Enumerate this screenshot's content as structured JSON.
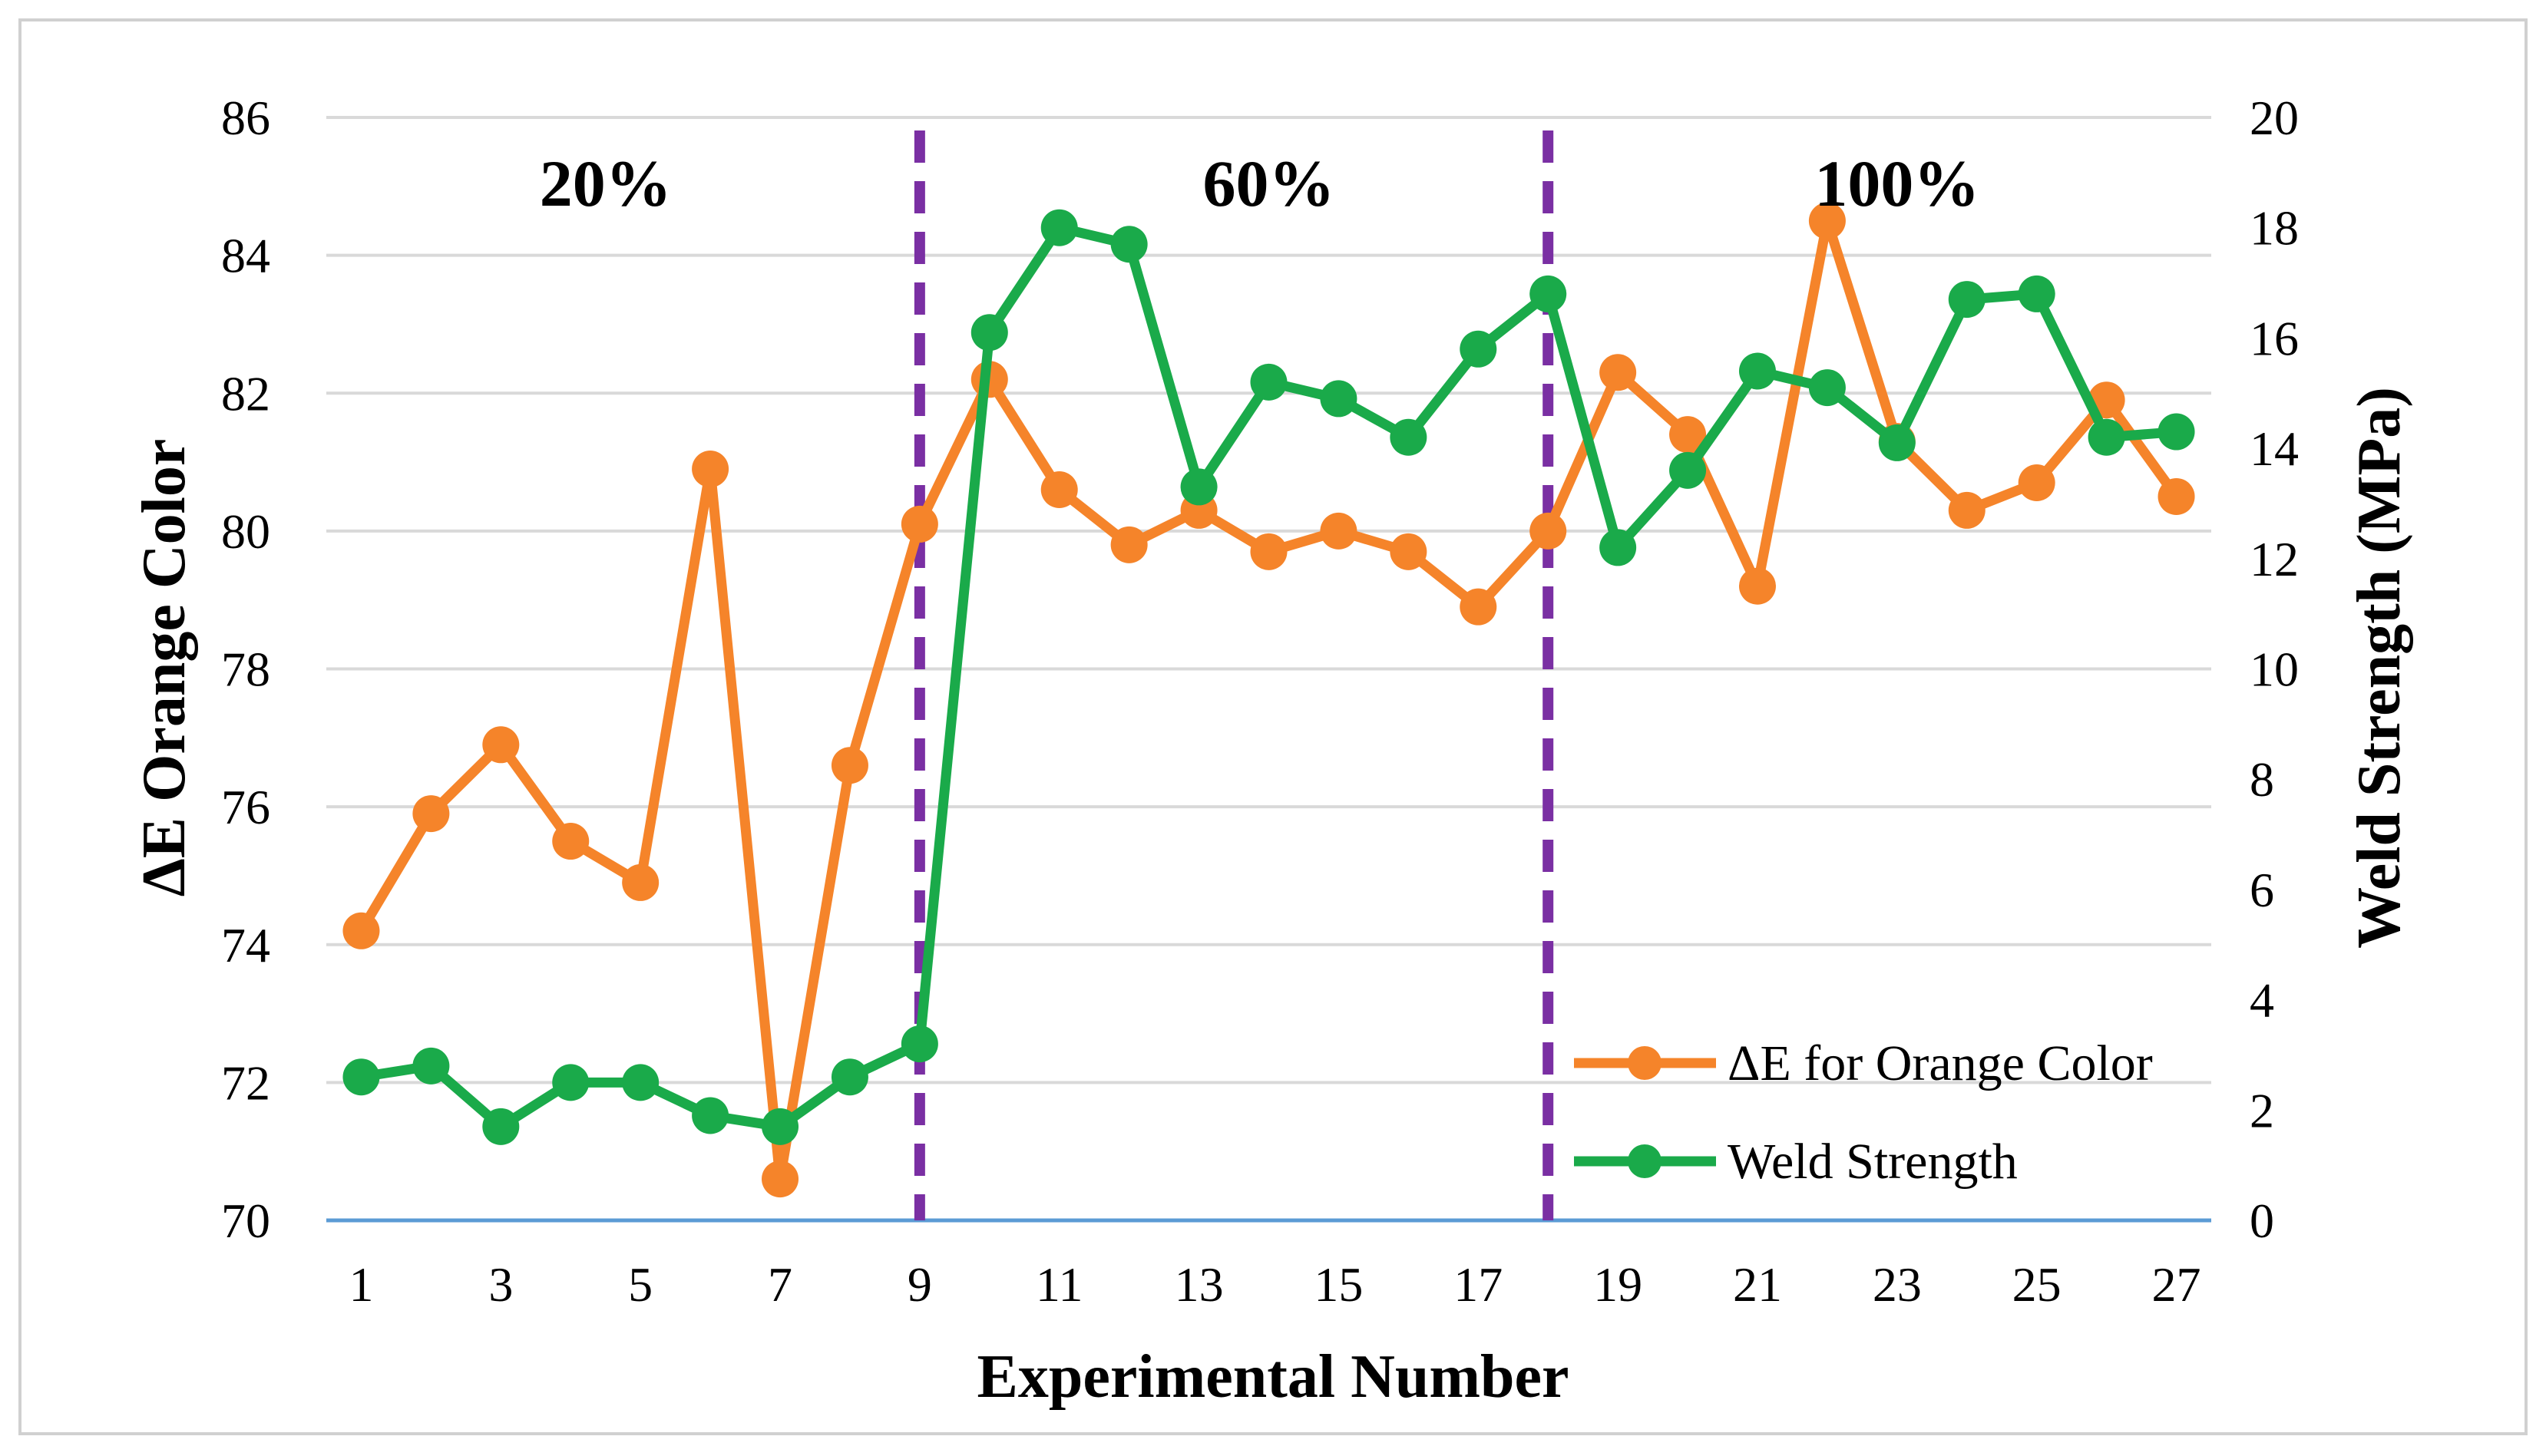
{
  "chart_data": {
    "type": "line",
    "x": [
      1,
      2,
      3,
      4,
      5,
      6,
      7,
      8,
      9,
      10,
      11,
      12,
      13,
      14,
      15,
      16,
      17,
      18,
      19,
      20,
      21,
      22,
      23,
      24,
      25,
      26,
      27
    ],
    "x_tick_labels": [
      "1",
      "3",
      "5",
      "7",
      "9",
      "11",
      "13",
      "15",
      "17",
      "19",
      "21",
      "23",
      "25",
      "27"
    ],
    "xlabel": "Experimental Number",
    "ylabel_left": "ΔE Orange Color",
    "ylabel_right": "Weld Strength (MPa)",
    "ylim_left": [
      70,
      86
    ],
    "ylim_right": [
      0,
      20
    ],
    "y_left_ticks": [
      "70",
      "72",
      "74",
      "76",
      "78",
      "80",
      "82",
      "84",
      "86"
    ],
    "y_right_ticks": [
      "0",
      "2",
      "4",
      "6",
      "8",
      "10",
      "12",
      "14",
      "16",
      "18",
      "20"
    ],
    "grid": true,
    "series": [
      {
        "name": "ΔE for Orange Color",
        "axis": "left",
        "color": "#f5842a",
        "values": [
          74.2,
          75.9,
          76.9,
          75.5,
          74.9,
          80.9,
          70.6,
          76.6,
          80.1,
          82.2,
          80.6,
          79.8,
          80.3,
          79.7,
          80.0,
          79.7,
          78.9,
          80.0,
          82.3,
          81.4,
          79.2,
          84.5,
          81.3,
          80.3,
          80.7,
          81.9,
          80.5
        ]
      },
      {
        "name": "Weld Strength",
        "axis": "right",
        "color": "#1aaa4a",
        "values": [
          2.6,
          2.8,
          1.7,
          2.5,
          2.5,
          1.9,
          1.7,
          2.6,
          3.2,
          16.1,
          18.0,
          17.7,
          13.3,
          15.2,
          14.9,
          14.2,
          15.8,
          16.8,
          12.2,
          13.6,
          15.4,
          15.1,
          14.1,
          16.7,
          16.8,
          14.2,
          14.3
        ]
      }
    ],
    "dividers": [
      {
        "x": 9,
        "color": "#7a2fa3"
      },
      {
        "x": 18,
        "color": "#7a2fa3"
      }
    ],
    "region_labels": [
      {
        "text": "20%",
        "x_center": 4.5
      },
      {
        "text": "60%",
        "x_center": 14
      },
      {
        "text": "100%",
        "x_center": 23
      }
    ],
    "legend_position": "bottom-right",
    "colors": {
      "grid": "#d9d9d9",
      "baseline": "#5b9bd5",
      "frame": "#d0d0d0"
    }
  }
}
